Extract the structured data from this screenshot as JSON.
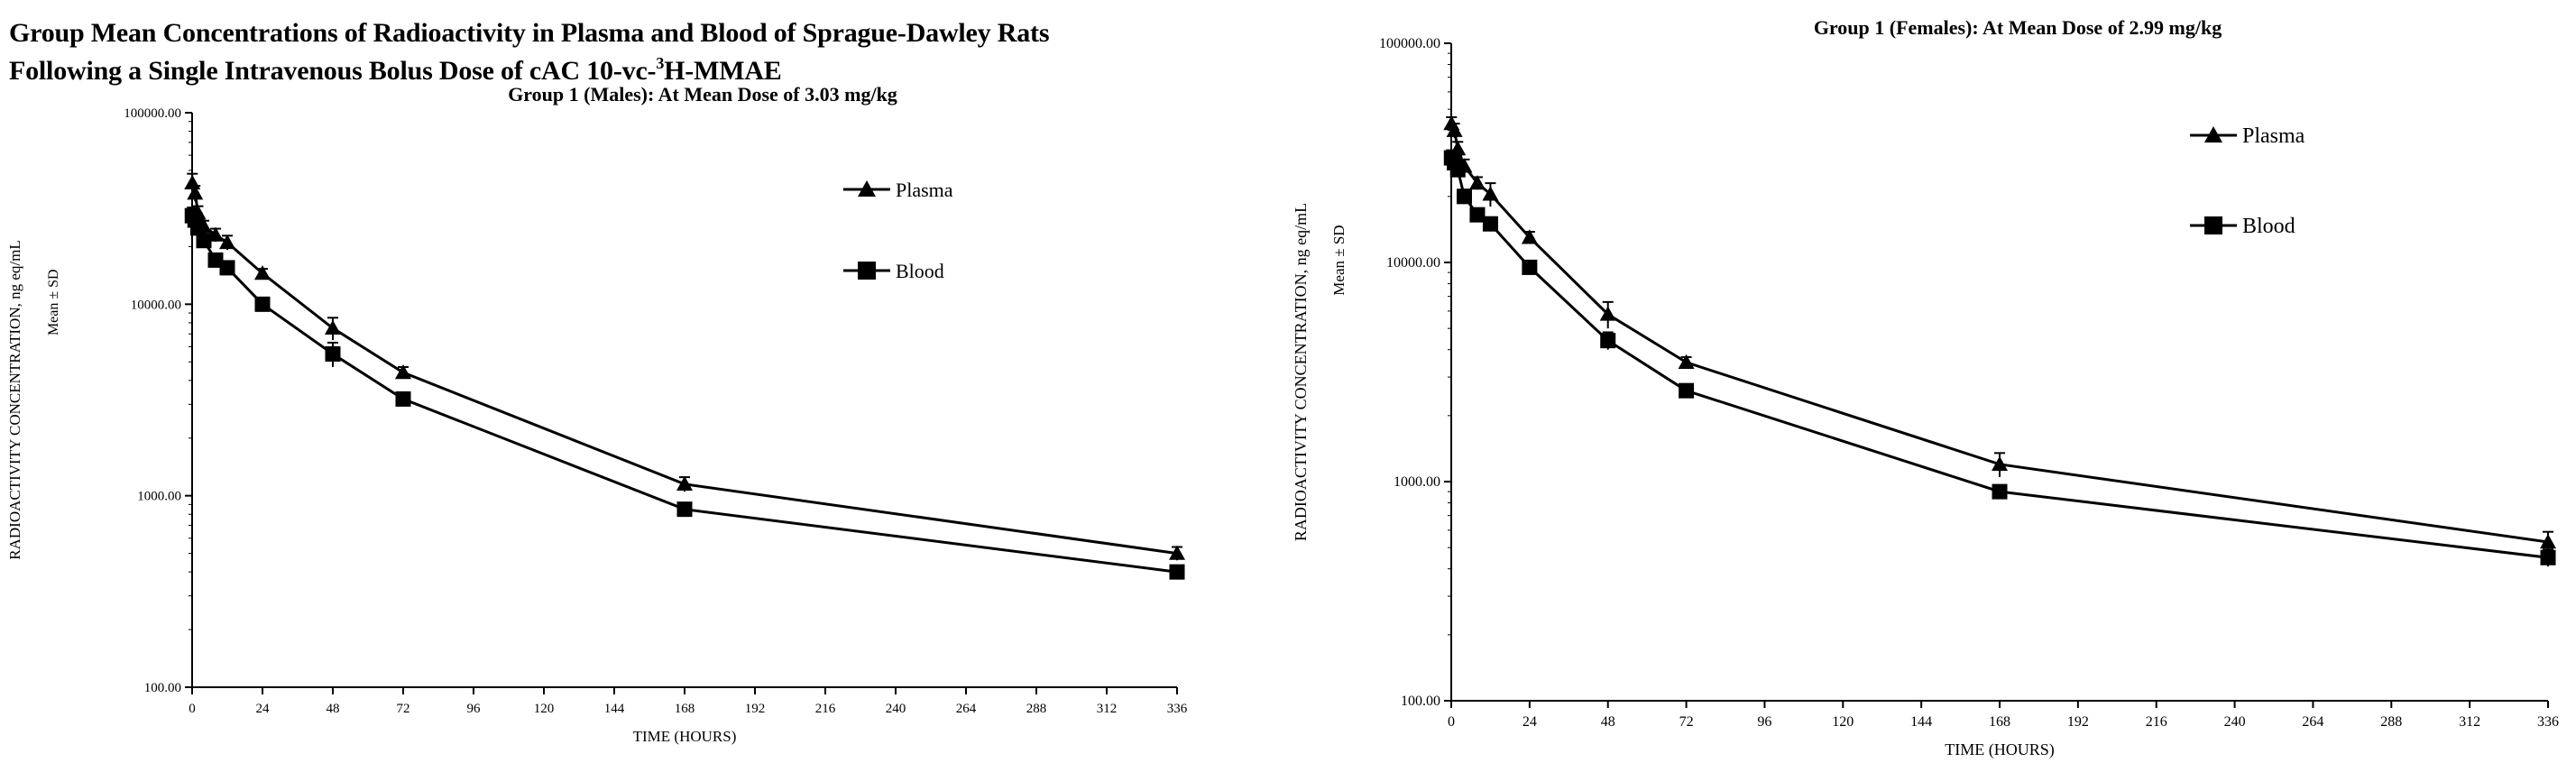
{
  "heading": {
    "line1": "Group Mean Concentrations of Radioactivity in Plasma and Blood of Sprague-Dawley Rats",
    "line2_pre": "Following a Single Intravenous Bolus Dose of cAC 10-vc-",
    "line2_sup": "3",
    "line2_post": "H-MMAE"
  },
  "chart_data": [
    {
      "type": "line",
      "title": "Group 1 (Males): At Mean Dose of 3.03 mg/kg",
      "xlabel": "TIME (HOURS)",
      "ylabel": "RADIOACTIVITY CONCENTRATION, ng eq/mL",
      "ylabel2": "Mean ± SD",
      "yscale": "log",
      "xlim": [
        0,
        336
      ],
      "ylim": [
        100,
        100000
      ],
      "xticks": [
        "0",
        "24",
        "48",
        "72",
        "96",
        "120",
        "144",
        "168",
        "192",
        "216",
        "240",
        "264",
        "288",
        "312",
        "336"
      ],
      "yticks": [
        "100.00",
        "1000.00",
        "10000.00",
        "100000.00"
      ],
      "legend_position": "top-right",
      "series": [
        {
          "name": "Plasma",
          "marker": "triangle",
          "x": [
            0.08,
            1,
            2,
            4,
            8,
            12,
            24,
            48,
            72,
            168,
            336
          ],
          "y": [
            43000,
            38000,
            30000,
            25500,
            23000,
            21000,
            14500,
            7500,
            4400,
            1150,
            500
          ],
          "sd": [
            5000,
            3500,
            2500,
            1800,
            1800,
            1800,
            800,
            1000,
            300,
            100,
            40
          ]
        },
        {
          "name": "Blood",
          "marker": "square",
          "x": [
            0.08,
            1,
            2,
            4,
            8,
            12,
            24,
            48,
            72,
            168,
            336
          ],
          "y": [
            29000,
            27500,
            25000,
            21500,
            17000,
            15500,
            10000,
            5500,
            3200,
            850,
            400
          ],
          "sd": [
            3000,
            2500,
            2000,
            1500,
            1000,
            900,
            500,
            800,
            150,
            60,
            30
          ]
        }
      ]
    },
    {
      "type": "line",
      "title": "Group 1 (Females): At Mean Dose of 2.99 mg/kg",
      "xlabel": "TIME (HOURS)",
      "ylabel": "RADIOACTIVITY CONCENTRATION, ng eq/mL",
      "ylabel2": "Mean ± SD",
      "yscale": "log",
      "xlim": [
        0,
        336
      ],
      "ylim": [
        100,
        100000
      ],
      "xticks": [
        "0",
        "24",
        "48",
        "72",
        "96",
        "120",
        "144",
        "168",
        "192",
        "216",
        "240",
        "264",
        "288",
        "312",
        "336"
      ],
      "yticks": [
        "100.00",
        "1000.00",
        "10000.00",
        "100000.00"
      ],
      "legend_position": "top-right",
      "series": [
        {
          "name": "Plasma",
          "marker": "triangle",
          "x": [
            0.08,
            1,
            2,
            4,
            8,
            12,
            24,
            48,
            72,
            168,
            336
          ],
          "y": [
            43000,
            40000,
            33000,
            27500,
            23000,
            20500,
            13000,
            5800,
            3500,
            1200,
            530
          ],
          "sd": [
            3000,
            3000,
            2500,
            2000,
            1500,
            2500,
            800,
            800,
            200,
            150,
            60
          ]
        },
        {
          "name": "Blood",
          "marker": "square",
          "x": [
            0.08,
            1,
            2,
            4,
            8,
            12,
            24,
            48,
            72,
            168,
            336
          ],
          "y": [
            30000,
            28500,
            26500,
            20000,
            16500,
            15000,
            9500,
            4400,
            2600,
            900,
            450
          ],
          "sd": [
            2500,
            2000,
            1800,
            1500,
            1000,
            900,
            500,
            400,
            150,
            60,
            40
          ]
        }
      ]
    }
  ]
}
